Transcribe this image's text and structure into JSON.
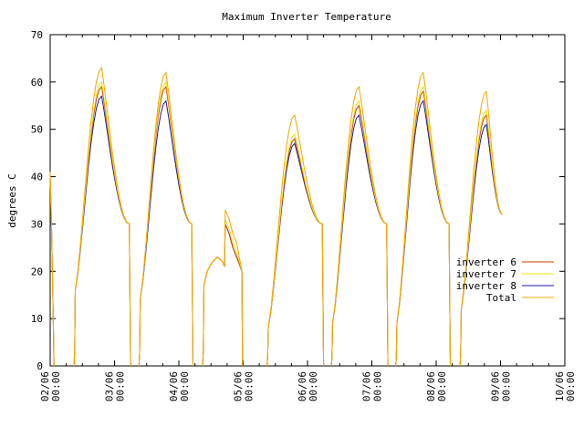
{
  "chart_data": {
    "type": "line",
    "title": "Maximum Inverter Temperature",
    "xlabel": "",
    "ylabel": "degrees C",
    "ylim": [
      0,
      70
    ],
    "yticks": [
      0,
      10,
      20,
      30,
      40,
      50,
      60,
      70
    ],
    "xlim": [
      0,
      8
    ],
    "xticks": [
      {
        "date": "02/06",
        "time": "00:00"
      },
      {
        "date": "03/06",
        "time": "00:00"
      },
      {
        "date": "04/06",
        "time": "00:00"
      },
      {
        "date": "05/06",
        "time": "00:00"
      },
      {
        "date": "06/06",
        "time": "00:00"
      },
      {
        "date": "07/06",
        "time": "00:00"
      },
      {
        "date": "08/06",
        "time": "00:00"
      },
      {
        "date": "09/06",
        "time": "00:00"
      },
      {
        "date": "10/06",
        "time": "00:00"
      }
    ],
    "x_unit": "days from 02/06 00:00",
    "grid": false,
    "legend_position": "right",
    "days": [
      {
        "day": 0,
        "start": 0.0,
        "end": 0.06,
        "peak_at": 0.0,
        "shoulder": 0,
        "x8": 40,
        "x6": 40,
        "x7": 40,
        "xt": 41,
        "seg_from": 0.0
      },
      {
        "day": 1,
        "start": 0.38,
        "end": 1.25,
        "peak_at": 0.8,
        "shoulder": 16,
        "x8": 57,
        "x6": 59,
        "x7": 60,
        "xt": 63
      },
      {
        "day": 2,
        "start": 1.39,
        "end": 2.22,
        "peak_at": 1.8,
        "shoulder": 14,
        "x8": 56,
        "x6": 59,
        "x7": 60,
        "xt": 62
      },
      {
        "day": 3,
        "start": 2.38,
        "end": 3.25,
        "peak_at": 2.8,
        "shoulder": 17,
        "x8": 30,
        "x6": 30,
        "x7": 31,
        "xt": 33,
        "cloudy": true
      },
      {
        "day": 4,
        "start": 3.38,
        "end": 4.25,
        "peak_at": 3.8,
        "shoulder": 8,
        "x8": 47,
        "x6": 48,
        "x7": 49,
        "xt": 53
      },
      {
        "day": 5,
        "start": 4.38,
        "end": 5.25,
        "peak_at": 4.8,
        "shoulder": 9,
        "x8": 53,
        "x6": 55,
        "x7": 56,
        "xt": 59
      },
      {
        "day": 6,
        "start": 5.38,
        "end": 6.22,
        "peak_at": 5.8,
        "shoulder": 9,
        "x8": 56,
        "x6": 58,
        "x7": 59,
        "xt": 62
      },
      {
        "day": 7,
        "start": 6.38,
        "end": 7.05,
        "peak_at": 6.78,
        "shoulder": 12,
        "x8": 51,
        "x6": 53,
        "x7": 54,
        "xt": 58,
        "end_value": 32
      }
    ],
    "series": [
      {
        "name": "inverter 6",
        "key": "x6",
        "color": "#c83c00"
      },
      {
        "name": "inverter 7",
        "key": "x7",
        "color": "#f0e000"
      },
      {
        "name": "inverter 8",
        "key": "x8",
        "color": "#1a1aa0"
      },
      {
        "name": "Total",
        "key": "xt",
        "color": "#f0a800"
      }
    ]
  }
}
